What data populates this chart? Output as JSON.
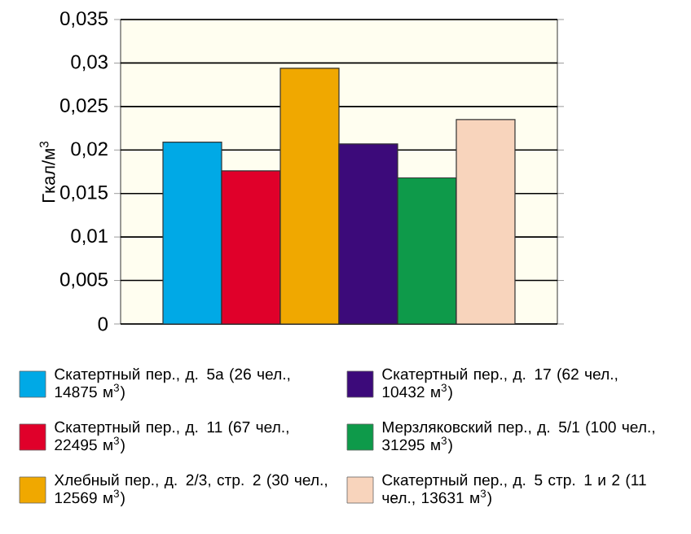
{
  "chart_data": {
    "type": "bar",
    "ylabel": "Гкал/м$^{3}$",
    "categories": [
      null
    ],
    "series": [
      {
        "name": "Скатертный пер., д. 5а (26 чел., 14875 м$^{3}$)",
        "color": "#00a9e6",
        "values": [
          0.0209
        ]
      },
      {
        "name": "Скатертный пер., д. 11 (67 чел., 22495 м$^{3}$)",
        "color": "#e0002a",
        "values": [
          0.0176
        ]
      },
      {
        "name": "Хлебный пер., д. 2/3, стр. 2 (30 чел., 12569 м$^{3}$)",
        "color": "#f0a800",
        "values": [
          0.0294
        ]
      },
      {
        "name": "Скатертный пер., д. 17 (62 чел., 10432 м$^{3}$)",
        "color": "#3c0a7a",
        "values": [
          0.0207
        ]
      },
      {
        "name": "Мерзляковский пер., д. 5/1 (100 чел., 31295 м$^{3}$)",
        "color": "#0e9a4a",
        "values": [
          0.0168
        ]
      },
      {
        "name": "Скатертный пер., д. 5 стр. 1 и 2 (11 чел., 13631 м$^{3}$)",
        "color": "#f8d4bc",
        "values": [
          0.0235
        ]
      }
    ],
    "ylim": [
      0,
      0.035
    ],
    "yticks": [
      0,
      {
        "value": 0.005,
        "label": "0,005"
      },
      {
        "value": 0.01,
        "label": "0,01"
      },
      {
        "value": 0.015,
        "label": "0,015"
      },
      {
        "value": 0.02,
        "label": "0,02"
      },
      {
        "value": 0.025,
        "label": "0,025"
      },
      {
        "value": 0.03,
        "label": "0,03"
      },
      {
        "value": 0.035,
        "label": "0,035"
      }
    ],
    "grid": "y",
    "legend": "bottom",
    "tick_labels": "y"
  }
}
